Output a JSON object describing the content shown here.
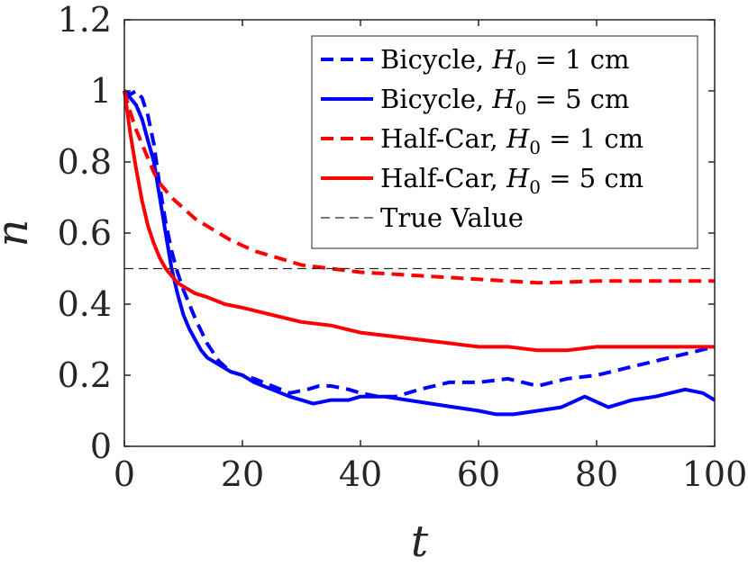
{
  "chart_data": {
    "type": "line",
    "title": "",
    "xlabel": "t",
    "ylabel": "n",
    "xlim": [
      0,
      100
    ],
    "ylim": [
      0,
      1.2
    ],
    "xticks": [
      "0",
      "20",
      "40",
      "60",
      "80",
      "100"
    ],
    "yticks": [
      "0",
      "0.2",
      "0.4",
      "0.6",
      "0.8",
      "1",
      "1.2"
    ],
    "legend_position": "top-right",
    "series": [
      {
        "name": "Bicycle, H0 = 1 cm",
        "legend_prefix": "Bicycle, ",
        "color": "#0000ff",
        "style": "dashed",
        "x": [
          0,
          1,
          2,
          3,
          4,
          5,
          6,
          7,
          8,
          9,
          10,
          12,
          14,
          16,
          18,
          20,
          22,
          25,
          28,
          31,
          33,
          35,
          38,
          40,
          43,
          46,
          50,
          55,
          60,
          65,
          70,
          75,
          80,
          85,
          90,
          95,
          100
        ],
        "y": [
          1.0,
          0.99,
          1.0,
          0.98,
          0.93,
          0.85,
          0.73,
          0.63,
          0.55,
          0.49,
          0.44,
          0.36,
          0.29,
          0.24,
          0.21,
          0.2,
          0.19,
          0.17,
          0.15,
          0.16,
          0.17,
          0.17,
          0.16,
          0.15,
          0.14,
          0.14,
          0.16,
          0.18,
          0.18,
          0.19,
          0.17,
          0.19,
          0.2,
          0.22,
          0.24,
          0.26,
          0.28
        ]
      },
      {
        "name": "Bicycle, H0 = 5 cm",
        "legend_prefix": "Bicycle, ",
        "color": "#0000ff",
        "style": "solid",
        "x": [
          0,
          1,
          2,
          3,
          4,
          5,
          6,
          7,
          8,
          9,
          10,
          11,
          12,
          13,
          14,
          16,
          18,
          20,
          22,
          25,
          28,
          30,
          32,
          35,
          38,
          40,
          44,
          48,
          52,
          56,
          60,
          63,
          66,
          70,
          74,
          78,
          82,
          86,
          90,
          95,
          98,
          100
        ],
        "y": [
          1.0,
          0.98,
          0.96,
          0.92,
          0.86,
          0.8,
          0.7,
          0.6,
          0.5,
          0.43,
          0.37,
          0.33,
          0.3,
          0.27,
          0.25,
          0.23,
          0.21,
          0.2,
          0.18,
          0.16,
          0.14,
          0.13,
          0.12,
          0.13,
          0.13,
          0.14,
          0.14,
          0.13,
          0.12,
          0.11,
          0.1,
          0.09,
          0.09,
          0.1,
          0.11,
          0.14,
          0.11,
          0.13,
          0.14,
          0.16,
          0.15,
          0.13
        ]
      },
      {
        "name": "Half-Car, H0 = 1 cm",
        "legend_prefix": "Half-Car, ",
        "color": "#ff0000",
        "style": "dashed",
        "x": [
          0,
          1,
          2,
          3,
          4,
          5,
          6,
          8,
          10,
          12,
          15,
          18,
          22,
          26,
          30,
          35,
          40,
          45,
          50,
          55,
          60,
          65,
          70,
          75,
          80,
          85,
          90,
          95,
          100
        ],
        "y": [
          1.0,
          0.94,
          0.89,
          0.85,
          0.81,
          0.77,
          0.74,
          0.7,
          0.67,
          0.64,
          0.61,
          0.58,
          0.55,
          0.53,
          0.51,
          0.5,
          0.49,
          0.485,
          0.48,
          0.475,
          0.47,
          0.465,
          0.46,
          0.462,
          0.465,
          0.465,
          0.465,
          0.465,
          0.465
        ]
      },
      {
        "name": "Half-Car, H0 = 5 cm",
        "legend_prefix": "Half-Car, ",
        "color": "#ff0000",
        "style": "solid",
        "x": [
          0,
          0.5,
          1,
          2,
          3,
          4,
          5,
          6,
          7,
          8,
          9,
          10,
          12,
          14,
          17,
          20,
          25,
          30,
          35,
          40,
          45,
          50,
          55,
          60,
          65,
          70,
          72,
          75,
          80,
          85,
          90,
          95,
          100
        ],
        "y": [
          1.0,
          0.94,
          0.88,
          0.78,
          0.69,
          0.62,
          0.57,
          0.53,
          0.5,
          0.48,
          0.46,
          0.45,
          0.43,
          0.42,
          0.4,
          0.39,
          0.37,
          0.35,
          0.34,
          0.32,
          0.31,
          0.3,
          0.29,
          0.28,
          0.28,
          0.27,
          0.27,
          0.27,
          0.28,
          0.28,
          0.28,
          0.28,
          0.28
        ]
      },
      {
        "name": "True Value",
        "legend_prefix": "True Value",
        "color": "#262626",
        "style": "thin-dashed",
        "x": [
          0,
          100
        ],
        "y": [
          0.5,
          0.5
        ]
      }
    ]
  }
}
